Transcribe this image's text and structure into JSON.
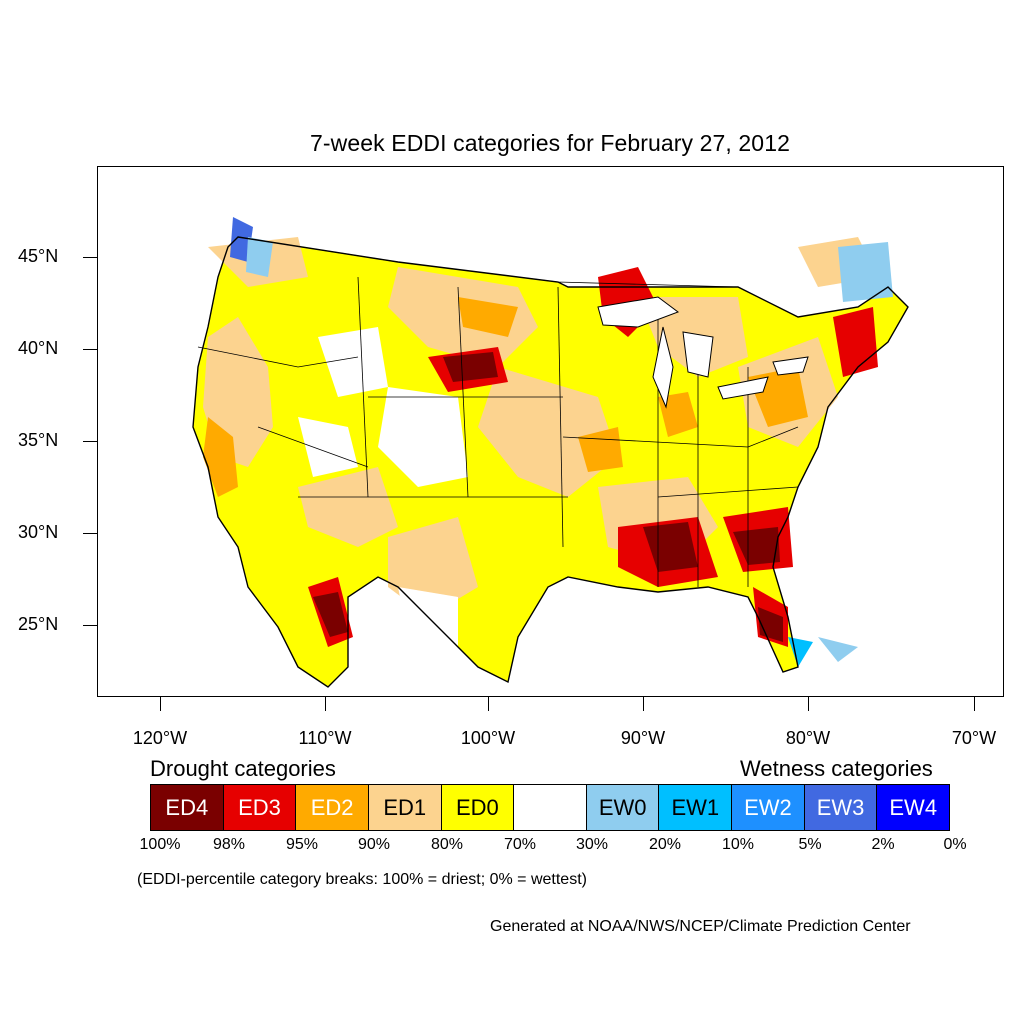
{
  "title": "7-week EDDI categories for February 27, 2012",
  "lat_labels": [
    "45°N",
    "40°N",
    "35°N",
    "30°N",
    "25°N"
  ],
  "lon_labels": [
    "120°W",
    "110°W",
    "100°W",
    "90°W",
    "80°W",
    "70°W"
  ],
  "legend": {
    "drought_label": "Drought categories",
    "wetness_label": "Wetness categories",
    "categories": [
      {
        "label": "ED4",
        "color": "#7a0000",
        "text_color": "#ffffff"
      },
      {
        "label": "ED3",
        "color": "#e60000",
        "text_color": "#ffffff"
      },
      {
        "label": "ED2",
        "color": "#ffaa00",
        "text_color": "#ffffff"
      },
      {
        "label": "ED1",
        "color": "#fcd38f",
        "text_color": "#000000"
      },
      {
        "label": "ED0",
        "color": "#ffff00",
        "text_color": "#000000"
      },
      {
        "label": "",
        "color": "#ffffff",
        "text_color": "#000000"
      },
      {
        "label": "EW0",
        "color": "#8fcdef",
        "text_color": "#000000"
      },
      {
        "label": "EW1",
        "color": "#00bfff",
        "text_color": "#000000"
      },
      {
        "label": "EW2",
        "color": "#1e90ff",
        "text_color": "#ffffff"
      },
      {
        "label": "EW3",
        "color": "#4169e1",
        "text_color": "#ffffff"
      },
      {
        "label": "EW4",
        "color": "#0000ff",
        "text_color": "#ffffff"
      }
    ],
    "percentiles": [
      "100%",
      "98%",
      "95%",
      "90%",
      "80%",
      "70%",
      "30%",
      "20%",
      "10%",
      "5%",
      "2%",
      "0%"
    ]
  },
  "note": "(EDDI-percentile category breaks: 100% = driest; 0% = wettest)",
  "credit": "Generated at NOAA/NWS/NCEP/Climate Prediction Center"
}
